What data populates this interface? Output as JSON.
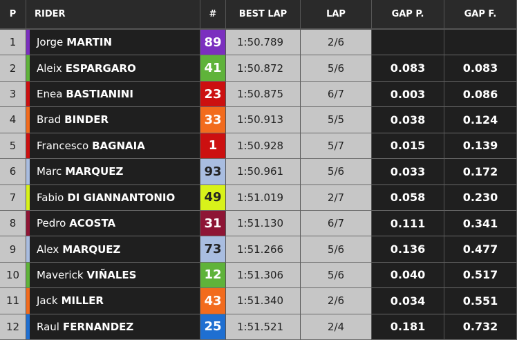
{
  "table": {
    "header": [
      "P",
      "RIDER",
      "#",
      "BEST LAP",
      "LAP",
      "GAP P.",
      "GAP F."
    ],
    "rows": [
      {
        "pos": "1",
        "first": "Jorge",
        "last": "MARTIN",
        "number": "89",
        "color": "#7b2fbf",
        "number_text": "#ffffff",
        "best_lap": "1:50.789",
        "lap": "2/6",
        "gap_p": null,
        "gap_f": null
      },
      {
        "pos": "2",
        "first": "Aleix",
        "last": "ESPARGARO",
        "number": "41",
        "color": "#5fb33a",
        "number_text": "#ffffff",
        "best_lap": "1:50.872",
        "lap": "5/6",
        "gap_p": "0.083",
        "gap_f": "0.083"
      },
      {
        "pos": "3",
        "first": "Enea",
        "last": "BASTIANINI",
        "number": "23",
        "color": "#cc1010",
        "number_text": "#ffffff",
        "best_lap": "1:50.875",
        "lap": "6/7",
        "gap_p": "0.003",
        "gap_f": "0.086"
      },
      {
        "pos": "4",
        "first": "Brad",
        "last": "BINDER",
        "number": "33",
        "color": "#f26b1d",
        "number_text": "#ffffff",
        "best_lap": "1:50.913",
        "lap": "5/5",
        "gap_p": "0.038",
        "gap_f": "0.124"
      },
      {
        "pos": "5",
        "first": "Francesco",
        "last": "BAGNAIA",
        "number": "1",
        "color": "#cc1010",
        "number_text": "#ffffff",
        "best_lap": "1:50.928",
        "lap": "5/7",
        "gap_p": "0.015",
        "gap_f": "0.139"
      },
      {
        "pos": "6",
        "first": "Marc",
        "last": "MARQUEZ",
        "number": "93",
        "color": "#a9bde0",
        "number_text": "#222222",
        "best_lap": "1:50.961",
        "lap": "5/6",
        "gap_p": "0.033",
        "gap_f": "0.172"
      },
      {
        "pos": "7",
        "first": "Fabio",
        "last": "DI GIANNANTONIO",
        "number": "49",
        "color": "#d8f21a",
        "number_text": "#222222",
        "best_lap": "1:51.019",
        "lap": "2/7",
        "gap_p": "0.058",
        "gap_f": "0.230"
      },
      {
        "pos": "8",
        "first": "Pedro",
        "last": "ACOSTA",
        "number": "31",
        "color": "#8e1535",
        "number_text": "#ffffff",
        "best_lap": "1:51.130",
        "lap": "6/7",
        "gap_p": "0.111",
        "gap_f": "0.341"
      },
      {
        "pos": "9",
        "first": "Alex",
        "last": "MARQUEZ",
        "number": "73",
        "color": "#a9bde0",
        "number_text": "#222222",
        "best_lap": "1:51.266",
        "lap": "5/6",
        "gap_p": "0.136",
        "gap_f": "0.477"
      },
      {
        "pos": "10",
        "first": "Maverick",
        "last": "VIÑALES",
        "number": "12",
        "color": "#5fb33a",
        "number_text": "#ffffff",
        "best_lap": "1:51.306",
        "lap": "5/6",
        "gap_p": "0.040",
        "gap_f": "0.517"
      },
      {
        "pos": "11",
        "first": "Jack",
        "last": "MILLER",
        "number": "43",
        "color": "#f26b1d",
        "number_text": "#ffffff",
        "best_lap": "1:51.340",
        "lap": "2/6",
        "gap_p": "0.034",
        "gap_f": "0.551"
      },
      {
        "pos": "12",
        "first": "Raul",
        "last": "FERNANDEZ",
        "number": "25",
        "color": "#1f6fd1",
        "number_text": "#ffffff",
        "best_lap": "1:51.521",
        "lap": "2/4",
        "gap_p": "0.181",
        "gap_f": "0.732"
      }
    ]
  }
}
